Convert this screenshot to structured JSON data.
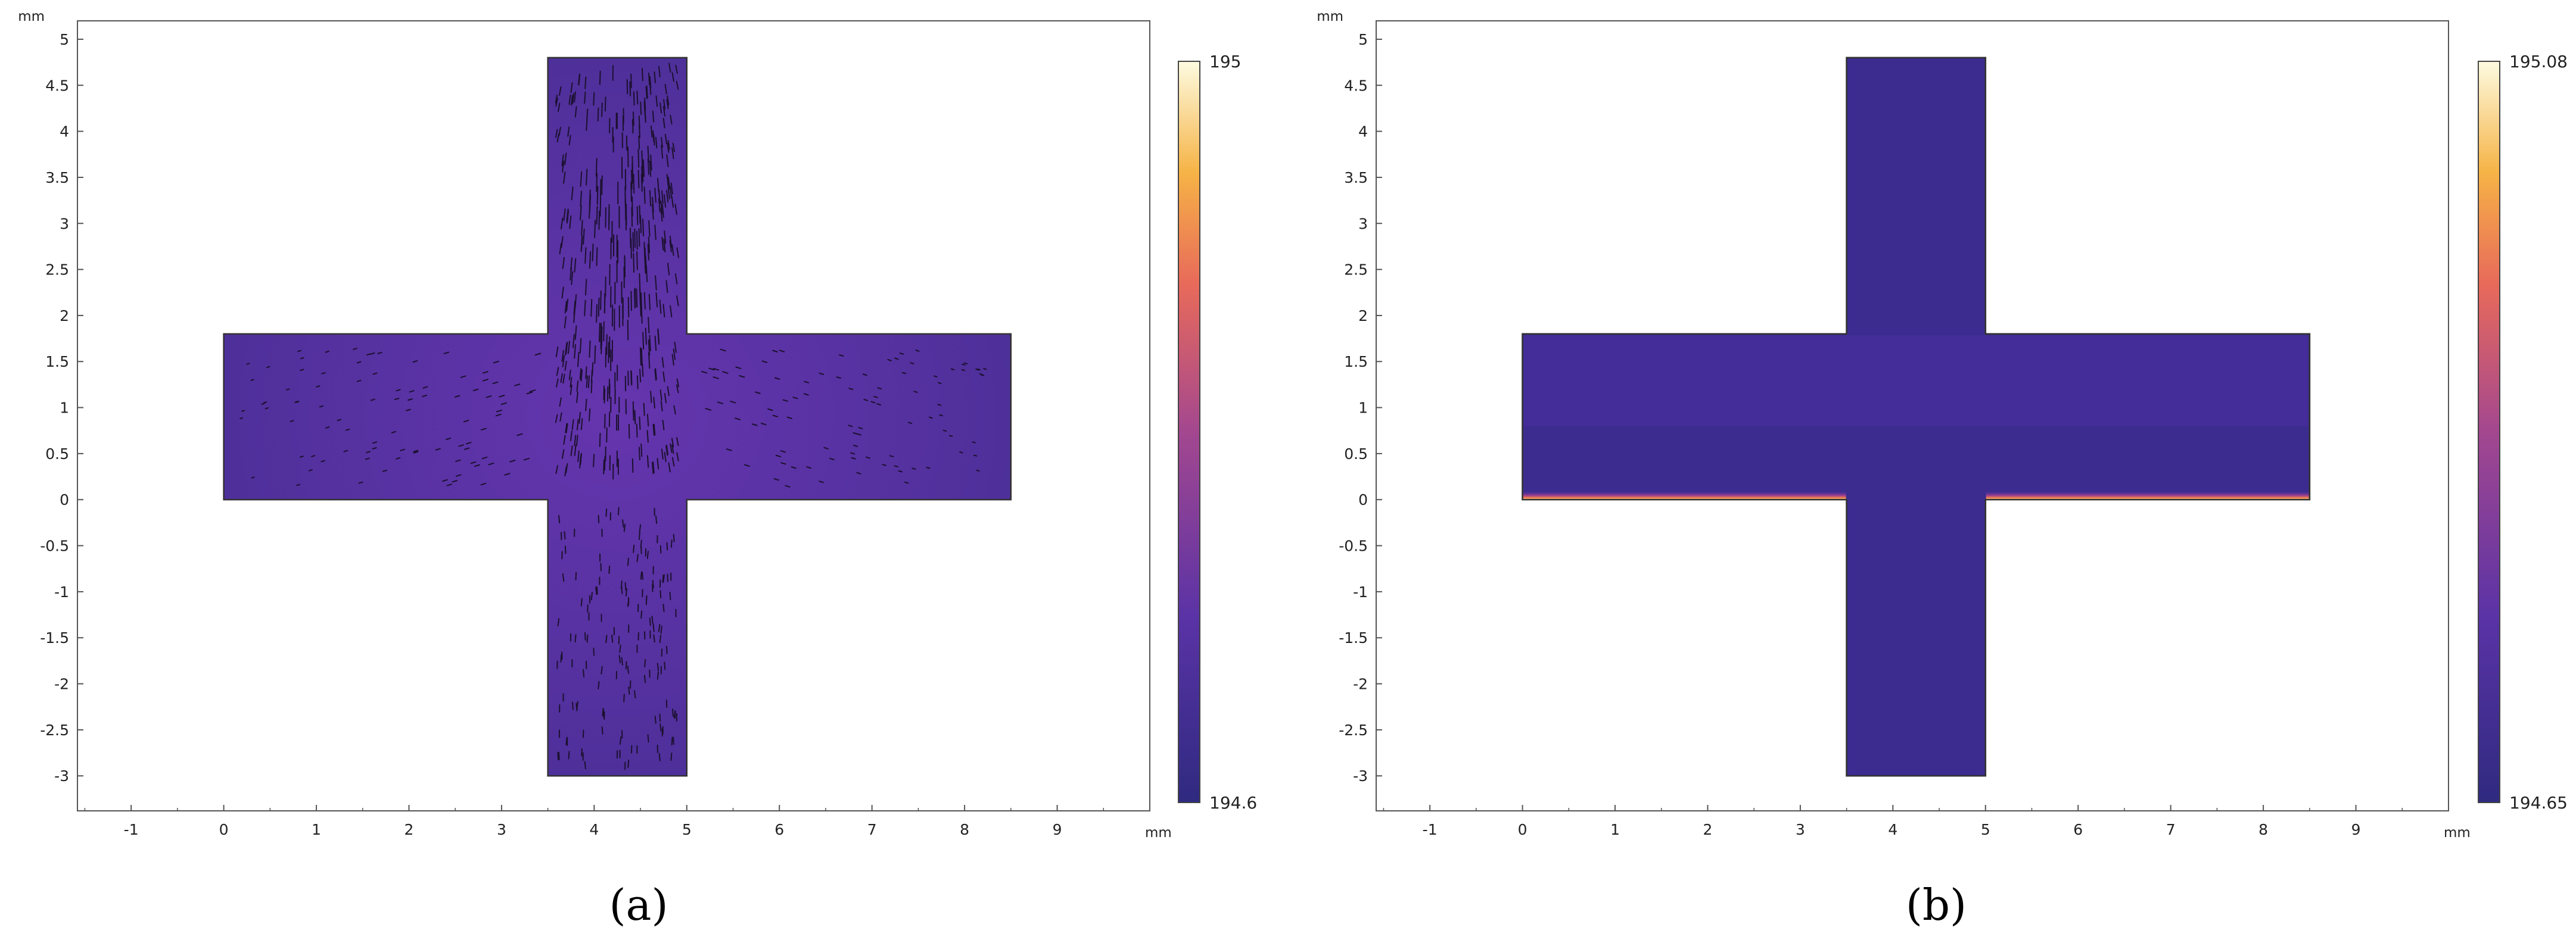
{
  "chart_data": [
    {
      "type": "heatmap",
      "panel_label": "(a)",
      "x_unit": "mm",
      "y_unit": "mm",
      "xlim": [
        -1.58,
        10.0
      ],
      "ylim": [
        -3.38,
        5.2
      ],
      "x_ticks": [
        -1,
        0,
        1,
        2,
        3,
        4,
        5,
        6,
        7,
        8,
        9
      ],
      "x_tick_labels": [
        "-1",
        "0",
        "1",
        "2",
        "3",
        "4",
        "5",
        "6",
        "7",
        "8",
        "9"
      ],
      "y_ticks": [
        5,
        4.5,
        4,
        3.5,
        3,
        2.5,
        2,
        1.5,
        1,
        0.5,
        0,
        -0.5,
        -1,
        -1.5,
        -2,
        -2.5,
        -3
      ],
      "y_tick_labels": [
        "5",
        "4.5",
        "4",
        "3.5",
        "3",
        "2.5",
        "2",
        "1.5",
        "1",
        "0.5",
        "0",
        "-0.5",
        "-1",
        "-1.5",
        "-2",
        "-2.5",
        "-3"
      ],
      "geometry": {
        "horizontal_arm": {
          "x": [
            0,
            8.5
          ],
          "y": [
            0,
            1.8
          ]
        },
        "vertical_arm": {
          "x": [
            3.5,
            5.0
          ],
          "y": [
            -3.0,
            4.8
          ]
        }
      },
      "colorbar": {
        "max": "195",
        "min": "194.6",
        "max_value": 195,
        "min_value": 194.6
      },
      "field_description": "uniform purple with velocity arrows concentrated in upper channel",
      "colors": {
        "low": "#3b2a8a",
        "field": "#5b32a4",
        "high": "#fdfbd2"
      }
    },
    {
      "type": "heatmap",
      "panel_label": "(b)",
      "x_unit": "mm",
      "y_unit": "mm",
      "xlim": [
        -1.58,
        10.0
      ],
      "ylim": [
        -3.38,
        5.2
      ],
      "x_ticks": [
        -1,
        0,
        1,
        2,
        3,
        4,
        5,
        6,
        7,
        8,
        9
      ],
      "x_tick_labels": [
        "-1",
        "0",
        "1",
        "2",
        "3",
        "4",
        "5",
        "6",
        "7",
        "8",
        "9"
      ],
      "y_ticks": [
        5,
        4.5,
        4,
        3.5,
        3,
        2.5,
        2,
        1.5,
        1,
        0.5,
        0,
        -0.5,
        -1,
        -1.5,
        -2,
        -2.5,
        -3
      ],
      "y_tick_labels": [
        "5",
        "4.5",
        "4",
        "3.5",
        "3",
        "2.5",
        "2",
        "1.5",
        "1",
        "0.5",
        "0",
        "-0.5",
        "-1",
        "-1.5",
        "-2",
        "-2.5",
        "-3"
      ],
      "geometry": {
        "horizontal_arm": {
          "x": [
            0,
            8.5
          ],
          "y": [
            0,
            1.8
          ]
        },
        "vertical_arm": {
          "x": [
            3.5,
            5.0
          ],
          "y": [
            -3.0,
            4.8
          ]
        }
      },
      "colorbar": {
        "max": "195.08",
        "min": "194.65",
        "max_value": 195.08,
        "min_value": 194.65
      },
      "field_description": "dark indigo domain with a thin hot strip along bottom wall of horizontal arm",
      "colors": {
        "low": "#3b2a8a",
        "field": "#3d2c8f",
        "high": "#fdfbd2"
      }
    }
  ]
}
